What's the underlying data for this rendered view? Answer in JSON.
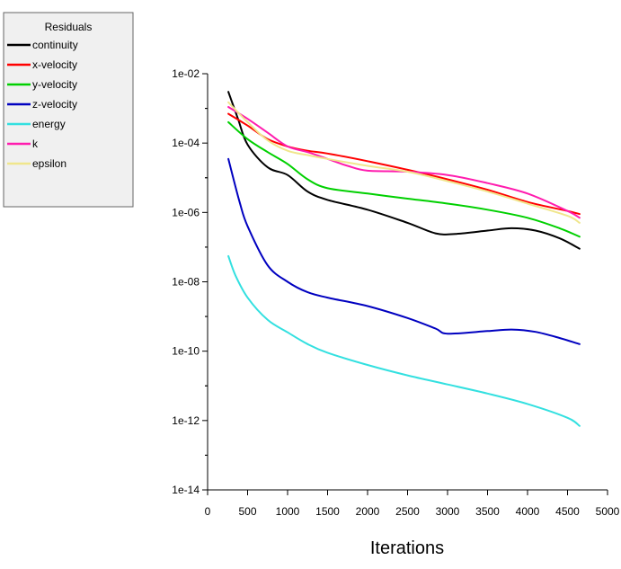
{
  "chart_data": {
    "type": "line",
    "title": "",
    "xlabel": "Iterations",
    "ylabel": "",
    "xlim": [
      0,
      5000
    ],
    "ylim": [
      1e-14,
      0.01
    ],
    "yscale": "log",
    "grid": false,
    "x_ticks": [
      0,
      500,
      1000,
      1500,
      2000,
      2500,
      3000,
      3500,
      4000,
      4500,
      5000
    ],
    "x_tick_labels": [
      "0",
      "500",
      "1000",
      "1500",
      "2000",
      "2500",
      "3000",
      "3500",
      "4000",
      "4500",
      "5000"
    ],
    "y_ticks": [
      1e-14,
      1e-12,
      1e-10,
      1e-08,
      1e-06,
      0.0001,
      0.01
    ],
    "y_tick_labels": [
      "1e-14",
      "1e-12",
      "1e-10",
      "1e-08",
      "1e-06",
      "1e-04",
      "1e-02"
    ],
    "legend": {
      "title": "Residuals",
      "placement": "top-left"
    },
    "series": [
      {
        "name": "continuity",
        "color": "#000000",
        "points": [
          [
            260,
            0.003
          ],
          [
            380,
            0.0005
          ],
          [
            500,
            9e-05
          ],
          [
            750,
            2e-05
          ],
          [
            1000,
            1.2e-05
          ],
          [
            1250,
            4e-06
          ],
          [
            1500,
            2.3e-06
          ],
          [
            2000,
            1.2e-06
          ],
          [
            2500,
            5e-07
          ],
          [
            2850,
            2.5e-07
          ],
          [
            3100,
            2.4e-07
          ],
          [
            3500,
            3e-07
          ],
          [
            3800,
            3.5e-07
          ],
          [
            4100,
            3e-07
          ],
          [
            4400,
            1.8e-07
          ],
          [
            4650,
            9e-08
          ]
        ]
      },
      {
        "name": "x-velocity",
        "color": "#ff0000",
        "points": [
          [
            260,
            0.0007
          ],
          [
            500,
            0.00032
          ],
          [
            750,
            0.00013
          ],
          [
            1000,
            8e-05
          ],
          [
            1250,
            6e-05
          ],
          [
            1500,
            5e-05
          ],
          [
            2000,
            3e-05
          ],
          [
            2500,
            1.7e-05
          ],
          [
            3000,
            9e-06
          ],
          [
            3500,
            4.5e-06
          ],
          [
            4000,
            2e-06
          ],
          [
            4500,
            1.1e-06
          ],
          [
            4650,
            9e-07
          ]
        ]
      },
      {
        "name": "y-velocity",
        "color": "#00d000",
        "points": [
          [
            260,
            0.0004
          ],
          [
            500,
            0.00013
          ],
          [
            750,
            5.5e-05
          ],
          [
            1000,
            2.5e-05
          ],
          [
            1250,
            9e-06
          ],
          [
            1500,
            5e-06
          ],
          [
            2000,
            3.5e-06
          ],
          [
            2500,
            2.5e-06
          ],
          [
            3000,
            1.8e-06
          ],
          [
            3500,
            1.2e-06
          ],
          [
            4000,
            7e-07
          ],
          [
            4400,
            3.5e-07
          ],
          [
            4650,
            2e-07
          ]
        ]
      },
      {
        "name": "z-velocity",
        "color": "#0000c0",
        "points": [
          [
            260,
            3.5e-05
          ],
          [
            400,
            2e-06
          ],
          [
            500,
            4e-07
          ],
          [
            750,
            3e-08
          ],
          [
            1000,
            1e-08
          ],
          [
            1250,
            5e-09
          ],
          [
            1500,
            3.5e-09
          ],
          [
            2000,
            2e-09
          ],
          [
            2500,
            9e-10
          ],
          [
            2850,
            4.5e-10
          ],
          [
            3000,
            3.2e-10
          ],
          [
            3500,
            3.8e-10
          ],
          [
            3800,
            4.2e-10
          ],
          [
            4100,
            3.6e-10
          ],
          [
            4400,
            2.4e-10
          ],
          [
            4650,
            1.6e-10
          ]
        ]
      },
      {
        "name": "energy",
        "color": "#33e0e0",
        "points": [
          [
            260,
            5.5e-08
          ],
          [
            350,
            1.5e-08
          ],
          [
            500,
            3.5e-09
          ],
          [
            750,
            8e-10
          ],
          [
            1000,
            3.5e-10
          ],
          [
            1250,
            1.6e-10
          ],
          [
            1500,
            9e-11
          ],
          [
            2000,
            4e-11
          ],
          [
            2500,
            2e-11
          ],
          [
            3000,
            1.1e-11
          ],
          [
            3500,
            6e-12
          ],
          [
            4000,
            3e-12
          ],
          [
            4500,
            1.2e-12
          ],
          [
            4650,
            7e-13
          ]
        ]
      },
      {
        "name": "k",
        "color": "#ff1cae",
        "points": [
          [
            260,
            0.0011
          ],
          [
            500,
            0.0005
          ],
          [
            750,
            0.0002
          ],
          [
            1000,
            8e-05
          ],
          [
            1250,
            5.5e-05
          ],
          [
            1500,
            3.5e-05
          ],
          [
            1750,
            2.2e-05
          ],
          [
            2000,
            1.6e-05
          ],
          [
            2500,
            1.5e-05
          ],
          [
            3000,
            1.2e-05
          ],
          [
            3500,
            7e-06
          ],
          [
            4000,
            3.5e-06
          ],
          [
            4500,
            1.1e-06
          ],
          [
            4650,
            7e-07
          ]
        ]
      },
      {
        "name": "epsilon",
        "color": "#f0e68c",
        "points": [
          [
            260,
            0.0015
          ],
          [
            500,
            0.0004
          ],
          [
            750,
            0.00012
          ],
          [
            1000,
            6e-05
          ],
          [
            1250,
            4.5e-05
          ],
          [
            1500,
            3.5e-05
          ],
          [
            2000,
            2.2e-05
          ],
          [
            2500,
            1.5e-05
          ],
          [
            3000,
            8e-06
          ],
          [
            3500,
            4e-06
          ],
          [
            4000,
            1.8e-06
          ],
          [
            4500,
            8e-07
          ],
          [
            4650,
            5e-07
          ]
        ]
      }
    ]
  }
}
